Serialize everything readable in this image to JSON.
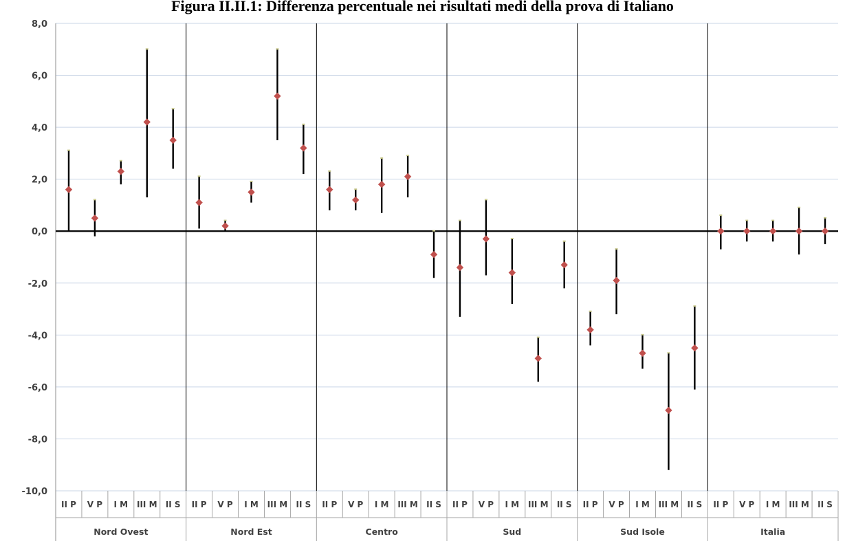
{
  "chart_data": {
    "type": "scatter",
    "title": "Figura II.II.1: Differenza percentuale nei risultati medi della prova di Italiano",
    "xlabel": "",
    "ylabel": "",
    "ylim": [
      -10,
      8
    ],
    "yticks": [
      "8,0",
      "6,0",
      "4,0",
      "2,0",
      "0,0",
      "-2,0",
      "-4,0",
      "-6,0",
      "-8,0",
      "-10,0"
    ],
    "grid": true,
    "legend": "none",
    "marker_color": "#c0504d",
    "bar_color": "#000000",
    "gridline_color": "#c9d5e6",
    "cap_color": "#c7c78a",
    "categories": [
      "II P",
      "V P",
      "I M",
      "III M",
      "II S"
    ],
    "groups": [
      {
        "name": "Nord Ovest",
        "values": [
          1.6,
          0.5,
          2.3,
          4.2,
          3.5
        ],
        "high": [
          3.1,
          1.2,
          2.7,
          7.0,
          4.7
        ],
        "low": [
          0.0,
          -0.2,
          1.8,
          1.3,
          2.4
        ]
      },
      {
        "name": "Nord Est",
        "values": [
          1.1,
          0.2,
          1.5,
          5.2,
          3.2
        ],
        "high": [
          2.1,
          0.4,
          1.9,
          7.0,
          4.1
        ],
        "low": [
          0.1,
          0.0,
          1.1,
          3.5,
          2.2
        ]
      },
      {
        "name": "Centro",
        "values": [
          1.6,
          1.2,
          1.8,
          2.1,
          -0.9
        ],
        "high": [
          2.3,
          1.6,
          2.8,
          2.9,
          0.0
        ],
        "low": [
          0.8,
          0.8,
          0.7,
          1.3,
          -1.8
        ]
      },
      {
        "name": "Sud",
        "values": [
          -1.4,
          -0.3,
          -1.6,
          -4.9,
          -1.3
        ],
        "high": [
          0.4,
          1.2,
          -0.3,
          -4.1,
          -0.4
        ],
        "low": [
          -3.3,
          -1.7,
          -2.8,
          -5.8,
          -2.2
        ]
      },
      {
        "name": "Sud Isole",
        "values": [
          -3.8,
          -1.9,
          -4.7,
          -6.9,
          -4.5
        ],
        "high": [
          -3.1,
          -0.7,
          -4.0,
          -4.7,
          -2.9
        ],
        "low": [
          -4.4,
          -3.2,
          -5.3,
          -9.2,
          -6.1
        ]
      },
      {
        "name": "Italia",
        "values": [
          0.0,
          0.0,
          0.0,
          0.0,
          0.0
        ],
        "high": [
          0.6,
          0.4,
          0.4,
          0.9,
          0.5
        ],
        "low": [
          -0.7,
          -0.4,
          -0.4,
          -0.9,
          -0.5
        ]
      }
    ]
  }
}
